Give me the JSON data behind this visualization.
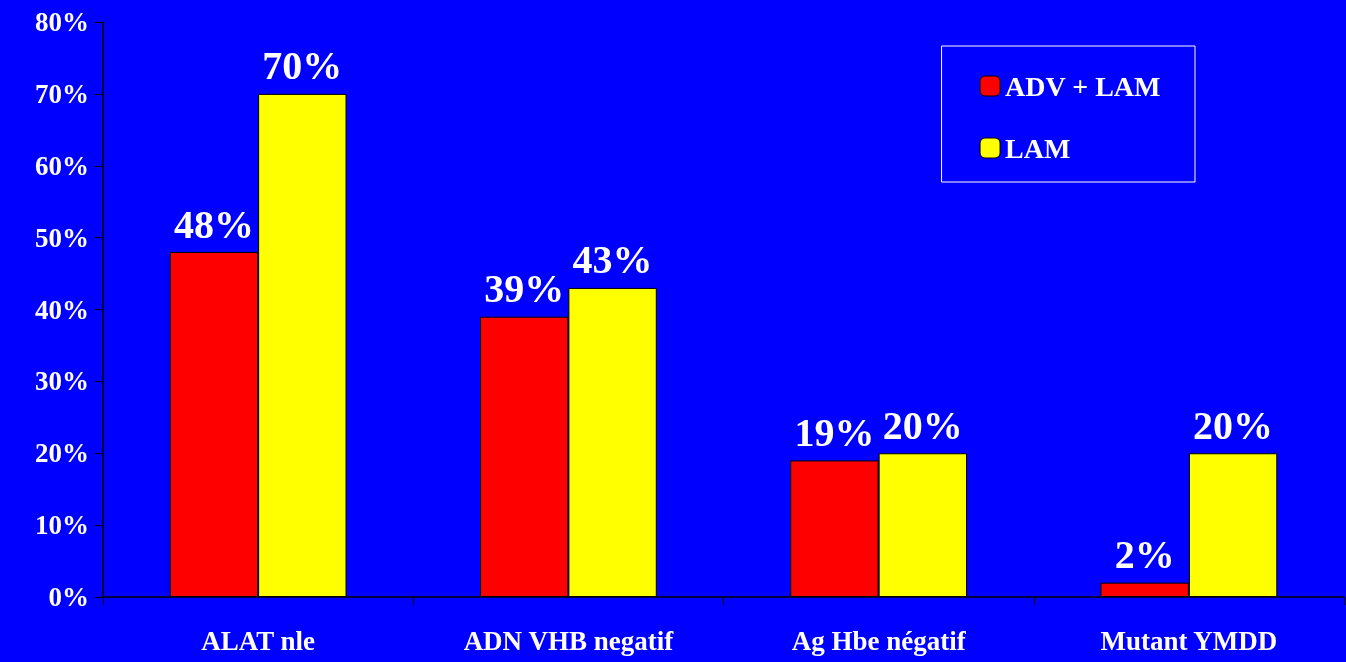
{
  "chart_data": {
    "type": "bar",
    "categories": [
      "ALAT nle",
      "ADN VHB negatif",
      "Ag Hbe négatif",
      "Mutant YMDD"
    ],
    "series": [
      {
        "name": "ADV + LAM",
        "color": "#ff0000",
        "values": [
          48,
          39,
          19,
          2
        ],
        "value_labels": [
          "48%",
          "39%",
          "19%",
          "2%"
        ]
      },
      {
        "name": "LAM",
        "color": "#ffff00",
        "values": [
          70,
          43,
          20,
          20
        ],
        "value_labels": [
          "70%",
          "43%",
          "20%",
          "20%"
        ]
      }
    ],
    "ylim": [
      0,
      80
    ],
    "yticks": [
      {
        "value": 0,
        "label": "0%"
      },
      {
        "value": 10,
        "label": "10%"
      },
      {
        "value": 20,
        "label": "20%"
      },
      {
        "value": 30,
        "label": "30%"
      },
      {
        "value": 40,
        "label": "40%"
      },
      {
        "value": 50,
        "label": "50%"
      },
      {
        "value": 60,
        "label": "60%"
      },
      {
        "value": 70,
        "label": "70%"
      },
      {
        "value": 80,
        "label": "80%"
      }
    ],
    "grid": false,
    "legend": "top right"
  }
}
